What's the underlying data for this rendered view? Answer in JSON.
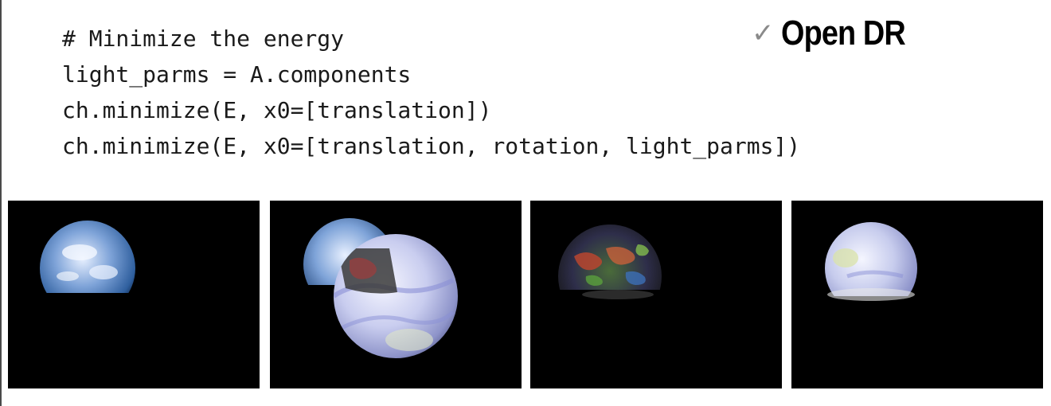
{
  "badge": {
    "check_icon": "checkmark-icon",
    "label": "Open DR"
  },
  "code": {
    "lines": [
      "# Minimize the energy",
      "light_parms = A.components",
      "ch.minimize(E, x0=[translation])",
      "ch.minimize(E, x0=[translation, rotation, light_parms])"
    ]
  },
  "panels": [
    {
      "content": "earth-observed-image"
    },
    {
      "content": "earth-model-overlay-initial"
    },
    {
      "content": "earth-residual-difference"
    },
    {
      "content": "earth-model-fitted"
    }
  ],
  "colors": {
    "background": "#ffffff",
    "panel_background": "#000000",
    "check": "#8a8a8a",
    "text": "#1a1a1a"
  }
}
